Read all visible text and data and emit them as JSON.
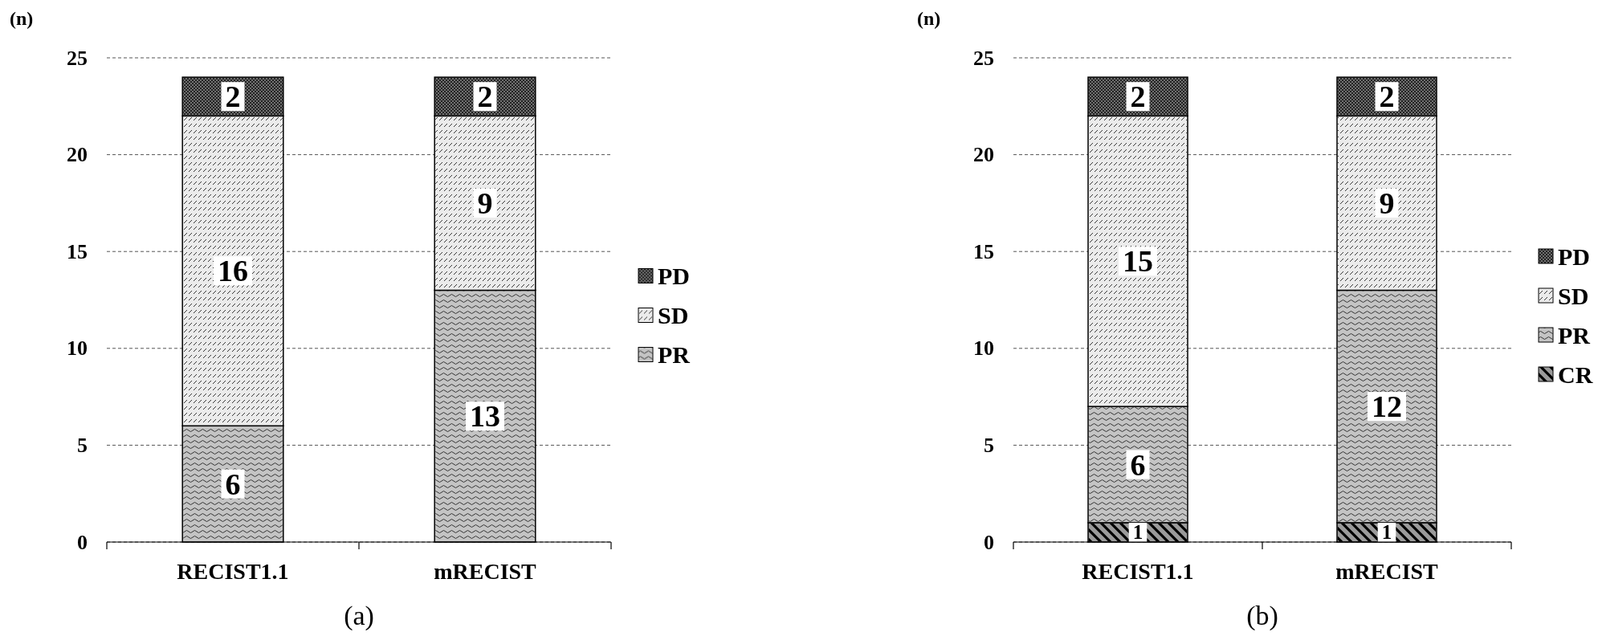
{
  "chart_data": [
    {
      "type": "bar",
      "stacked": true,
      "title": "(a)",
      "ylabel": "(n)",
      "categories": [
        "RECIST1.1",
        "mRECIST"
      ],
      "series": [
        {
          "name": "PR",
          "color": "#c4c4c4",
          "values": [
            6,
            13
          ]
        },
        {
          "name": "SD",
          "color": "#ebebeb",
          "values": [
            16,
            9
          ]
        },
        {
          "name": "PD",
          "color": "#707070",
          "values": [
            2,
            2
          ]
        }
      ],
      "ylim": [
        0,
        25
      ],
      "yticks": [
        0,
        5,
        10,
        15,
        20,
        25
      ],
      "grid": "y",
      "legend": "right",
      "data_labels": true
    },
    {
      "type": "bar",
      "stacked": true,
      "title": "(b)",
      "ylabel": "(n)",
      "categories": [
        "RECIST1.1",
        "mRECIST"
      ],
      "series": [
        {
          "name": "CR",
          "color": "#9a9a9a",
          "values": [
            1,
            1
          ]
        },
        {
          "name": "PR",
          "color": "#c4c4c4",
          "values": [
            6,
            12
          ]
        },
        {
          "name": "SD",
          "color": "#ebebeb",
          "values": [
            15,
            9
          ]
        },
        {
          "name": "PD",
          "color": "#707070",
          "values": [
            2,
            2
          ]
        }
      ],
      "ylim": [
        0,
        25
      ],
      "yticks": [
        0,
        5,
        10,
        15,
        20,
        25
      ],
      "grid": "y",
      "legend": "right",
      "data_labels": true
    }
  ]
}
